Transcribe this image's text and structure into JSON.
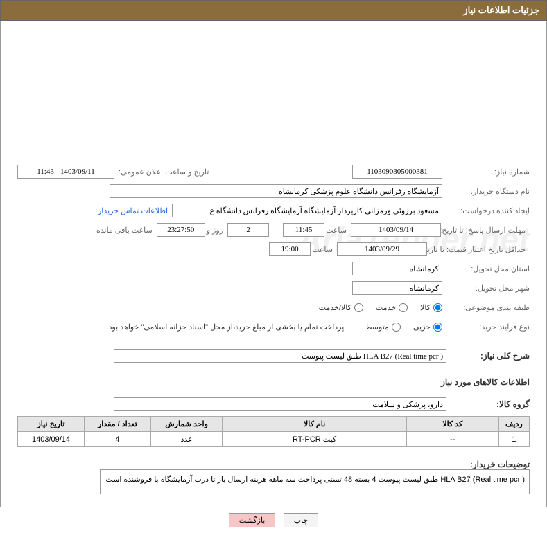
{
  "header": {
    "title": "جزئیات اطلاعات نیاز"
  },
  "fields": {
    "need_number_label": "شماره نیاز:",
    "need_number": "1103090305000381",
    "announce_date_label": "تاریخ و ساعت اعلان عمومی:",
    "announce_date": "1403/09/11 - 11:43",
    "buyer_org_label": "نام دستگاه خریدار:",
    "buyer_org": "آزمایشگاه رفرانس دانشگاه علوم پزشکی کرمانشاه",
    "requester_label": "ایجاد کننده درخواست:",
    "requester": "مسعود برزوئی ورمزانی کارپرداز آزمایشگاه آزمایشگاه رفرانس دانشگاه ع",
    "contact_link": "اطلاعات تماس خریدار",
    "deadline_send_label": "مهلت ارسال پاسخ: تا تاریخ:",
    "deadline_send_date": "1403/09/14",
    "time_label": "ساعت",
    "deadline_send_time": "11:45",
    "days": "2",
    "days_and": "روز و",
    "countdown": "23:27:50",
    "remain_label": "ساعت باقی مانده",
    "min_valid_label": "حداقل تاریخ اعتبار قیمت: تا تاریخ:",
    "min_valid_date": "1403/09/29",
    "min_valid_time": "19:00",
    "province_label": "استان محل تحویل:",
    "province": "کرمانشاه",
    "city_label": "شهر محل تحویل:",
    "city": "کرمانشاه",
    "category_label": "طبقه بندی موضوعی:",
    "purchase_type_label": "نوع فرآیند خرید:",
    "payment_note": "پرداخت تمام یا بخشی از مبلغ خرید،از محل \"اسناد خزانه اسلامی\" خواهد بود.",
    "desc_label": "شرح کلی نیاز:",
    "desc": "( HLA B27 (Real time pcr طبق لیست پیوست",
    "items_section": "اطلاعات کالاهای مورد نیاز",
    "group_label": "گروه کالا:",
    "group": "دارو، پزشکی و سلامت",
    "buyer_notes_label": "توضیحات خریدار:",
    "buyer_notes": "( HLA B27 (Real time pcr طبق لیست پیوست 4 بسته 48 تستی پرداخت سه ماهه هزینه ارسال بار تا درب آزمایشگاه با فروشنده است"
  },
  "radios": {
    "category": {
      "options": [
        "کالا",
        "خدمت",
        "کالا/خدمت"
      ],
      "selected": 0
    },
    "purchase": {
      "options": [
        "جزیی",
        "متوسط"
      ],
      "selected": 0
    }
  },
  "table": {
    "headers": [
      "ردیف",
      "کد کالا",
      "نام کالا",
      "واحد شمارش",
      "تعداد / مقدار",
      "تاریخ نیاز"
    ],
    "rows": [
      [
        "1",
        "--",
        "کیت RT-PCR",
        "عدد",
        "4",
        "1403/09/14"
      ]
    ],
    "col_widths": [
      "6%",
      "18%",
      "36%",
      "14%",
      "13%",
      "13%"
    ]
  },
  "buttons": {
    "print": "چاپ",
    "back": "بازگشت"
  },
  "watermark": "AriaTender.net"
}
